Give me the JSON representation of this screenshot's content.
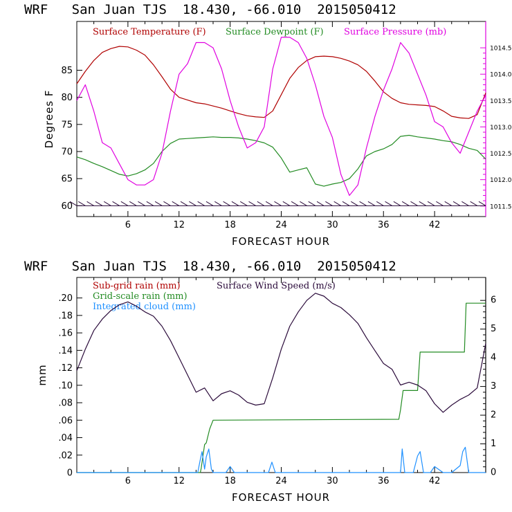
{
  "chart_data": [
    {
      "type": "line",
      "title": "WRF   San Juan TJS  18.430, -66.010  2015050412",
      "xlabel": "FORECAST HOUR",
      "ylabel": "Degrees F",
      "xlim": [
        0,
        48
      ],
      "ylim": [
        58,
        94
      ],
      "y2lim": [
        1011.3,
        1015.0
      ],
      "x_ticks": [
        6,
        12,
        18,
        24,
        30,
        36,
        42
      ],
      "x_tick_labels": [
        "6",
        "12",
        "18",
        "24",
        "30",
        "36",
        "42"
      ],
      "y_ticks": [
        60,
        65,
        70,
        75,
        80,
        85
      ],
      "y_tick_labels": [
        "60",
        "65",
        "70",
        "75",
        "80",
        "85"
      ],
      "y2_ticks": [
        1011.5,
        1012.0,
        1012.5,
        1013.0,
        1013.5,
        1014.0,
        1014.5
      ],
      "y2_tick_labels": [
        "1011.5",
        "1012.0",
        "1012.5",
        "1013.0",
        "1013.5",
        "1014.0",
        "1014.5"
      ],
      "legend": [
        "Surface Temperature (F)",
        "Surface Dewpoint (F)",
        "Surface Pressure (mb)"
      ],
      "colors": {
        "temperature": "#b00000",
        "dewpoint": "#228b22",
        "pressure": "#e000e0",
        "wind": "#2a0a3a"
      },
      "series": [
        {
          "name": "Surface Temperature (F)",
          "axis": "left",
          "x": [
            0,
            1,
            2,
            3,
            4,
            5,
            6,
            7,
            8,
            9,
            10,
            11,
            12,
            13,
            14,
            15,
            16,
            17,
            18,
            19,
            20,
            21,
            22,
            23,
            24,
            25,
            26,
            27,
            28,
            29,
            30,
            31,
            32,
            33,
            34,
            35,
            36,
            37,
            38,
            39,
            40,
            41,
            42,
            43,
            44,
            45,
            46,
            47,
            48
          ],
          "values": [
            82.5,
            84.8,
            86.8,
            88.3,
            89.0,
            89.4,
            89.3,
            88.7,
            87.8,
            86.0,
            83.8,
            81.5,
            80.0,
            79.5,
            79.0,
            78.8,
            78.4,
            78.0,
            77.5,
            77.0,
            76.6,
            76.4,
            76.3,
            77.5,
            80.5,
            83.5,
            85.5,
            86.8,
            87.5,
            87.6,
            87.5,
            87.2,
            86.7,
            86.0,
            84.8,
            83.0,
            81.0,
            79.8,
            79.0,
            78.7,
            78.6,
            78.5,
            78.3,
            77.5,
            76.5,
            76.2,
            76.1,
            76.8,
            80.8
          ]
        },
        {
          "name": "Surface Dewpoint (F)",
          "axis": "left",
          "x": [
            0,
            1,
            2,
            3,
            4,
            5,
            6,
            7,
            8,
            9,
            10,
            11,
            12,
            13,
            14,
            15,
            16,
            17,
            18,
            19,
            20,
            21,
            22,
            23,
            24,
            25,
            26,
            27,
            28,
            29,
            30,
            31,
            32,
            33,
            34,
            35,
            36,
            37,
            38,
            39,
            40,
            41,
            42,
            43,
            44,
            45,
            46,
            47,
            48
          ],
          "values": [
            69.0,
            68.5,
            67.8,
            67.2,
            66.5,
            65.8,
            65.5,
            65.9,
            66.6,
            67.8,
            70.0,
            71.5,
            72.3,
            72.4,
            72.5,
            72.6,
            72.7,
            72.6,
            72.6,
            72.5,
            72.3,
            72.0,
            71.6,
            70.8,
            68.8,
            66.2,
            66.6,
            67.0,
            64.0,
            63.6,
            64.0,
            64.3,
            65.0,
            66.8,
            69.2,
            70.0,
            70.5,
            71.3,
            72.8,
            73.0,
            72.7,
            72.5,
            72.3,
            72.0,
            71.8,
            71.3,
            70.6,
            70.2,
            68.6
          ]
        },
        {
          "name": "Surface Pressure (mb)",
          "axis": "right",
          "x": [
            0,
            1,
            2,
            3,
            4,
            5,
            6,
            7,
            8,
            9,
            10,
            11,
            12,
            13,
            14,
            15,
            16,
            17,
            18,
            19,
            20,
            21,
            22,
            23,
            24,
            25,
            26,
            27,
            28,
            29,
            30,
            31,
            32,
            33,
            34,
            35,
            36,
            37,
            38,
            39,
            40,
            41,
            42,
            43,
            44,
            45,
            46,
            47,
            48
          ],
          "values": [
            1013.5,
            1013.8,
            1013.3,
            1012.7,
            1012.6,
            1012.3,
            1012.0,
            1011.9,
            1011.9,
            1012.0,
            1012.5,
            1013.3,
            1014.0,
            1014.2,
            1014.6,
            1014.6,
            1014.5,
            1014.1,
            1013.5,
            1013.0,
            1012.6,
            1012.7,
            1013.0,
            1014.1,
            1014.7,
            1014.7,
            1014.6,
            1014.3,
            1013.8,
            1013.2,
            1012.8,
            1012.1,
            1011.7,
            1011.9,
            1012.6,
            1013.2,
            1013.7,
            1014.1,
            1014.6,
            1014.4,
            1014.0,
            1013.6,
            1013.1,
            1013.0,
            1012.7,
            1012.5,
            1012.9,
            1013.3,
            1013.6
          ]
        },
        {
          "name": "Wind barbs",
          "axis": "left",
          "x": [
            0,
            1,
            2,
            3,
            4,
            5,
            6,
            7,
            8,
            9,
            10,
            11,
            12,
            13,
            14,
            15,
            16,
            17,
            18,
            19,
            20,
            21,
            22,
            23,
            24,
            25,
            26,
            27,
            28,
            29,
            30,
            31,
            32,
            33,
            34,
            35,
            36,
            37,
            38,
            39,
            40,
            41,
            42,
            43,
            44,
            45,
            46,
            47,
            48
          ],
          "values": [
            60,
            60,
            60,
            60,
            60,
            60,
            60,
            60,
            60,
            60,
            60,
            60,
            60,
            60,
            60,
            60,
            60,
            60,
            60,
            60,
            60,
            60,
            60,
            60,
            60,
            60,
            60,
            60,
            60,
            60,
            60,
            60,
            60,
            60,
            60,
            60,
            60,
            60,
            60,
            60,
            60,
            60,
            60,
            60,
            60,
            60,
            60,
            60,
            60
          ]
        }
      ]
    },
    {
      "type": "line",
      "title": "WRF   San Juan TJS  18.430, -66.010  2015050412",
      "xlabel": "FORECAST HOUR",
      "ylabel": "mm",
      "xlim": [
        0,
        48
      ],
      "ylim": [
        0,
        0.2235
      ],
      "y2lim": [
        0,
        6.8
      ],
      "x_ticks": [
        6,
        12,
        18,
        24,
        30,
        36,
        42
      ],
      "x_tick_labels": [
        "6",
        "12",
        "18",
        "24",
        "30",
        "36",
        "42"
      ],
      "y_ticks": [
        0,
        0.02,
        0.04,
        0.06,
        0.08,
        0.1,
        0.12,
        0.14,
        0.16,
        0.18,
        0.2
      ],
      "y_tick_labels": [
        "0",
        ".02",
        ".04",
        ".06",
        ".08",
        ".10",
        ".12",
        ".14",
        ".16",
        ".18",
        ".20"
      ],
      "y2_ticks": [
        0,
        1,
        2,
        3,
        4,
        5,
        6
      ],
      "y2_tick_labels": [
        "0",
        "1",
        "2",
        "3",
        "4",
        "5",
        "6"
      ],
      "legend": [
        "Sub-grid rain (mm)",
        "Grid-scale rain (mm)",
        "Integrated cloud (mm)",
        "Surface Wind Speed (m/s)"
      ],
      "colors": {
        "subgrid": "#b00000",
        "gridscale": "#228b22",
        "cloud": "#1e90ff",
        "wind": "#2a0a3a"
      },
      "series": [
        {
          "name": "Grid-scale rain (mm)",
          "axis": "left",
          "x": [
            0,
            14.5,
            14.6,
            15.0,
            15.2,
            15.6,
            16.0,
            37.8,
            38.0,
            38.3,
            40.0,
            40.3,
            45.5,
            45.7,
            48
          ],
          "values": [
            0,
            0,
            0.005,
            0.032,
            0.034,
            0.05,
            0.06,
            0.061,
            0.072,
            0.094,
            0.094,
            0.138,
            0.138,
            0.194,
            0.194
          ]
        },
        {
          "name": "Integrated cloud (mm)",
          "axis": "left",
          "x": [
            0,
            14.2,
            14.5,
            14.7,
            15.0,
            15.2,
            15.5,
            15.8,
            16.0,
            17.5,
            18.0,
            18.5,
            22.5,
            22.9,
            23.3,
            38.0,
            38.2,
            38.5,
            39.5,
            40.0,
            40.3,
            40.7,
            41.5,
            42.0,
            43.0,
            44.0,
            45.0,
            45.3,
            45.6,
            46.0,
            47.0,
            48
          ],
          "values": [
            0,
            0,
            0.015,
            0.024,
            0.004,
            0.018,
            0.027,
            0.004,
            0.0,
            0.0,
            0.007,
            0.0,
            0.0,
            0.012,
            0.0,
            0.0,
            0.027,
            0.0,
            0.0,
            0.019,
            0.024,
            0.0,
            0.0,
            0.007,
            0.0,
            0.0,
            0.008,
            0.024,
            0.029,
            0.0,
            0.0,
            0.0
          ]
        },
        {
          "name": "Surface Wind Speed (m/s)",
          "axis": "right",
          "x": [
            0,
            1,
            2,
            3,
            4,
            5,
            6,
            7,
            8,
            9,
            10,
            11,
            12,
            13,
            14,
            15,
            16,
            17,
            18,
            19,
            20,
            21,
            22,
            23,
            24,
            25,
            26,
            27,
            28,
            29,
            30,
            31,
            32,
            33,
            34,
            35,
            36,
            37,
            38,
            39,
            40,
            41,
            42,
            43,
            44,
            45,
            46,
            47,
            48
          ],
          "values": [
            3.55,
            4.3,
            4.95,
            5.35,
            5.65,
            5.85,
            5.95,
            5.8,
            5.6,
            5.45,
            5.1,
            4.6,
            4.0,
            3.4,
            2.8,
            2.95,
            2.5,
            2.75,
            2.85,
            2.7,
            2.45,
            2.35,
            2.4,
            3.3,
            4.3,
            5.1,
            5.6,
            6.0,
            6.25,
            6.15,
            5.9,
            5.75,
            5.5,
            5.2,
            4.7,
            4.25,
            3.8,
            3.6,
            3.05,
            3.15,
            3.05,
            2.85,
            2.4,
            2.1,
            2.35,
            2.55,
            2.7,
            2.95,
            4.5
          ]
        }
      ]
    }
  ]
}
